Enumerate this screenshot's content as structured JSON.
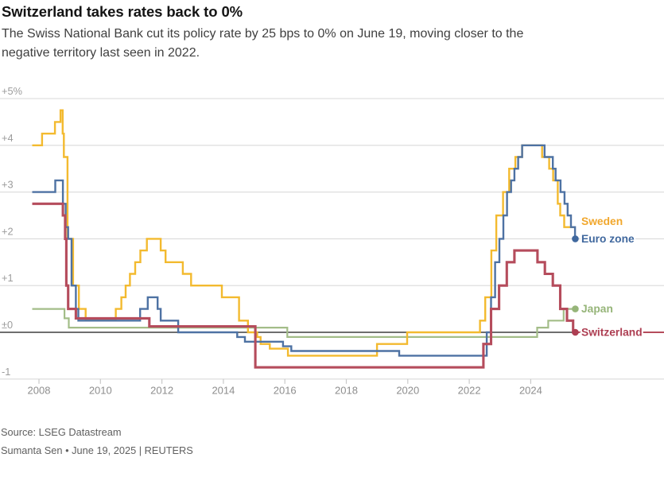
{
  "header": {
    "title": "Switzerland takes rates back to 0%",
    "subtitle": "The Swiss National Bank cut its policy rate by 25 bps to 0% on June 19, moving closer to the\nnegative territory last seen in 2022."
  },
  "footer": {
    "source": "Source: LSEG Datastream",
    "byline": "Sumanta Sen • June 19, 2025 | REUTERS"
  },
  "colors": {
    "grid": "#dadada",
    "zero_line": "#3f3f3f",
    "tick": "#c9c9c9",
    "y_axis_text": "#9c9c9c",
    "x_axis_text": "#8e8e8e"
  },
  "chart_data": {
    "type": "line",
    "step": true,
    "unit": "%",
    "x_range": [
      2007.78,
      2025.45
    ],
    "y_range": [
      -1,
      5
    ],
    "grid": true,
    "legend_position": "right-inline",
    "y_ticks": [
      {
        "value": 5,
        "label": "+5%"
      },
      {
        "value": 4,
        "label": "+4"
      },
      {
        "value": 3,
        "label": "+3"
      },
      {
        "value": 2,
        "label": "+2"
      },
      {
        "value": 1,
        "label": "+1"
      },
      {
        "value": 0,
        "label": "±0"
      },
      {
        "value": -1,
        "label": "-1"
      }
    ],
    "x_ticks": [
      {
        "value": 2008,
        "label": "2008"
      },
      {
        "value": 2010,
        "label": "2010"
      },
      {
        "value": 2012,
        "label": "2012"
      },
      {
        "value": 2014,
        "label": "2014"
      },
      {
        "value": 2016,
        "label": "2016"
      },
      {
        "value": 2018,
        "label": "2018"
      },
      {
        "value": 2020,
        "label": "2020"
      },
      {
        "value": 2022,
        "label": "2022"
      },
      {
        "value": 2024,
        "label": "2024"
      }
    ],
    "series": [
      {
        "name": "Japan",
        "color": "#a3bd88",
        "label_color": "#96b579",
        "width": 2.2,
        "end_dot": true,
        "label_v": 0.5,
        "end_value": 0.5,
        "points": [
          [
            2007.78,
            0.5
          ],
          [
            2008.83,
            0.3
          ],
          [
            2008.97,
            0.1
          ],
          [
            2016.08,
            -0.1
          ],
          [
            2024.21,
            0.1
          ],
          [
            2024.57,
            0.25
          ],
          [
            2025.07,
            0.5
          ],
          [
            2025.45,
            0.5
          ]
        ]
      },
      {
        "name": "Sweden",
        "color": "#f3ba2f",
        "label_color": "#f1a72c",
        "width": 2.4,
        "end_dot": false,
        "label_v": 2.37,
        "end_value": 2.25,
        "points": [
          [
            2007.78,
            4.0
          ],
          [
            2008.1,
            4.25
          ],
          [
            2008.52,
            4.5
          ],
          [
            2008.7,
            4.75
          ],
          [
            2008.77,
            4.25
          ],
          [
            2008.81,
            3.75
          ],
          [
            2008.93,
            2.0
          ],
          [
            2009.11,
            1.0
          ],
          [
            2009.3,
            0.5
          ],
          [
            2009.52,
            0.25
          ],
          [
            2010.5,
            0.5
          ],
          [
            2010.68,
            0.75
          ],
          [
            2010.82,
            1.0
          ],
          [
            2010.96,
            1.25
          ],
          [
            2011.13,
            1.5
          ],
          [
            2011.3,
            1.75
          ],
          [
            2011.51,
            2.0
          ],
          [
            2011.96,
            1.75
          ],
          [
            2012.12,
            1.5
          ],
          [
            2012.68,
            1.25
          ],
          [
            2012.95,
            1.0
          ],
          [
            2013.95,
            0.75
          ],
          [
            2014.51,
            0.25
          ],
          [
            2014.8,
            0.0
          ],
          [
            2015.1,
            -0.1
          ],
          [
            2015.21,
            -0.25
          ],
          [
            2015.51,
            -0.35
          ],
          [
            2016.1,
            -0.5
          ],
          [
            2019.0,
            -0.25
          ],
          [
            2019.98,
            0.0
          ],
          [
            2022.35,
            0.25
          ],
          [
            2022.52,
            0.75
          ],
          [
            2022.72,
            1.75
          ],
          [
            2022.88,
            2.5
          ],
          [
            2023.1,
            3.0
          ],
          [
            2023.3,
            3.5
          ],
          [
            2023.5,
            3.75
          ],
          [
            2023.72,
            4.0
          ],
          [
            2024.37,
            3.75
          ],
          [
            2024.6,
            3.5
          ],
          [
            2024.73,
            3.25
          ],
          [
            2024.88,
            2.75
          ],
          [
            2024.96,
            2.5
          ],
          [
            2025.09,
            2.25
          ],
          [
            2025.45,
            2.25
          ]
        ]
      },
      {
        "name": "Euro zone",
        "color": "#4e72a3",
        "label_color": "#40689e",
        "width": 2.4,
        "end_dot": true,
        "label_v": 2.0,
        "end_value": 2.0,
        "points": [
          [
            2007.78,
            3.0
          ],
          [
            2008.53,
            3.25
          ],
          [
            2008.78,
            2.75
          ],
          [
            2008.87,
            2.25
          ],
          [
            2008.95,
            2.0
          ],
          [
            2009.06,
            1.0
          ],
          [
            2009.2,
            0.5
          ],
          [
            2009.28,
            0.25
          ],
          [
            2011.29,
            0.5
          ],
          [
            2011.54,
            0.75
          ],
          [
            2011.86,
            0.5
          ],
          [
            2011.96,
            0.25
          ],
          [
            2012.53,
            0.0
          ],
          [
            2014.45,
            -0.1
          ],
          [
            2014.7,
            -0.2
          ],
          [
            2015.94,
            -0.3
          ],
          [
            2016.21,
            -0.4
          ],
          [
            2019.72,
            -0.5
          ],
          [
            2022.57,
            0.0
          ],
          [
            2022.71,
            0.75
          ],
          [
            2022.84,
            1.5
          ],
          [
            2022.98,
            2.0
          ],
          [
            2023.11,
            2.5
          ],
          [
            2023.23,
            3.0
          ],
          [
            2023.36,
            3.25
          ],
          [
            2023.47,
            3.5
          ],
          [
            2023.59,
            3.75
          ],
          [
            2023.72,
            4.0
          ],
          [
            2024.45,
            3.75
          ],
          [
            2024.72,
            3.5
          ],
          [
            2024.81,
            3.25
          ],
          [
            2024.97,
            3.0
          ],
          [
            2025.1,
            2.75
          ],
          [
            2025.2,
            2.5
          ],
          [
            2025.31,
            2.25
          ],
          [
            2025.44,
            2.0
          ],
          [
            2025.45,
            2.0
          ]
        ]
      },
      {
        "name": "Switzerland",
        "color": "#b54c5c",
        "label_color": "#ad3e52",
        "width": 3.1,
        "end_dot": true,
        "label_v": 0.0,
        "end_value": 0.0,
        "zero_trail": true,
        "points": [
          [
            2007.78,
            2.75
          ],
          [
            2008.78,
            2.5
          ],
          [
            2008.85,
            2.0
          ],
          [
            2008.89,
            1.0
          ],
          [
            2008.95,
            0.5
          ],
          [
            2009.2,
            0.3
          ],
          [
            2011.59,
            0.125
          ],
          [
            2015.04,
            -0.75
          ],
          [
            2022.46,
            -0.25
          ],
          [
            2022.71,
            0.5
          ],
          [
            2022.97,
            1.0
          ],
          [
            2023.22,
            1.5
          ],
          [
            2023.47,
            1.75
          ],
          [
            2024.22,
            1.5
          ],
          [
            2024.46,
            1.25
          ],
          [
            2024.72,
            1.0
          ],
          [
            2024.96,
            0.5
          ],
          [
            2025.18,
            0.25
          ],
          [
            2025.38,
            0.0
          ],
          [
            2025.45,
            0.0
          ]
        ]
      }
    ]
  }
}
